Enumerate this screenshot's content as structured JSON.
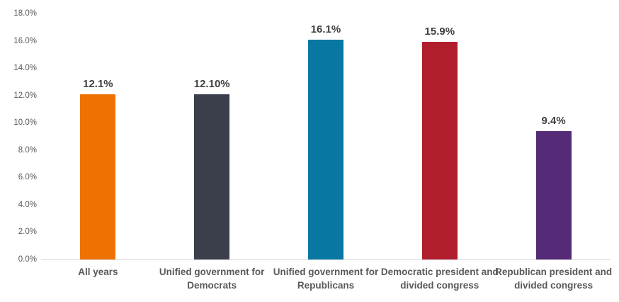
{
  "chart_data": {
    "type": "bar",
    "title": "",
    "xlabel": "",
    "ylabel": "",
    "categories": [
      "All years",
      "Unified government for Democrats",
      "Unified government for Republicans",
      "Democratic president and divided congress",
      "Republican president and divided congress"
    ],
    "values": [
      12.1,
      12.1,
      16.1,
      15.9,
      9.4
    ],
    "value_labels": [
      "12.1%",
      "12.10%",
      "16.1%",
      "15.9%",
      "9.4%"
    ],
    "bar_colors": [
      "#ee7202",
      "#3a3f4b",
      "#0878a2",
      "#b01e2c",
      "#552b77"
    ],
    "ylim": [
      0,
      18
    ],
    "ytick_step": 2,
    "ytick_labels": [
      "0.0%",
      "2.0%",
      "4.0%",
      "6.0%",
      "8.0%",
      "10.0%",
      "12.0%",
      "14.0%",
      "16.0%",
      "18.0%"
    ],
    "grid": false,
    "legend": false
  },
  "colors": {
    "background": "#ffffff",
    "axis_line": "#d9d9d9",
    "ytick_text": "#595959",
    "category_text": "#595959",
    "value_label_text": "#404040"
  }
}
